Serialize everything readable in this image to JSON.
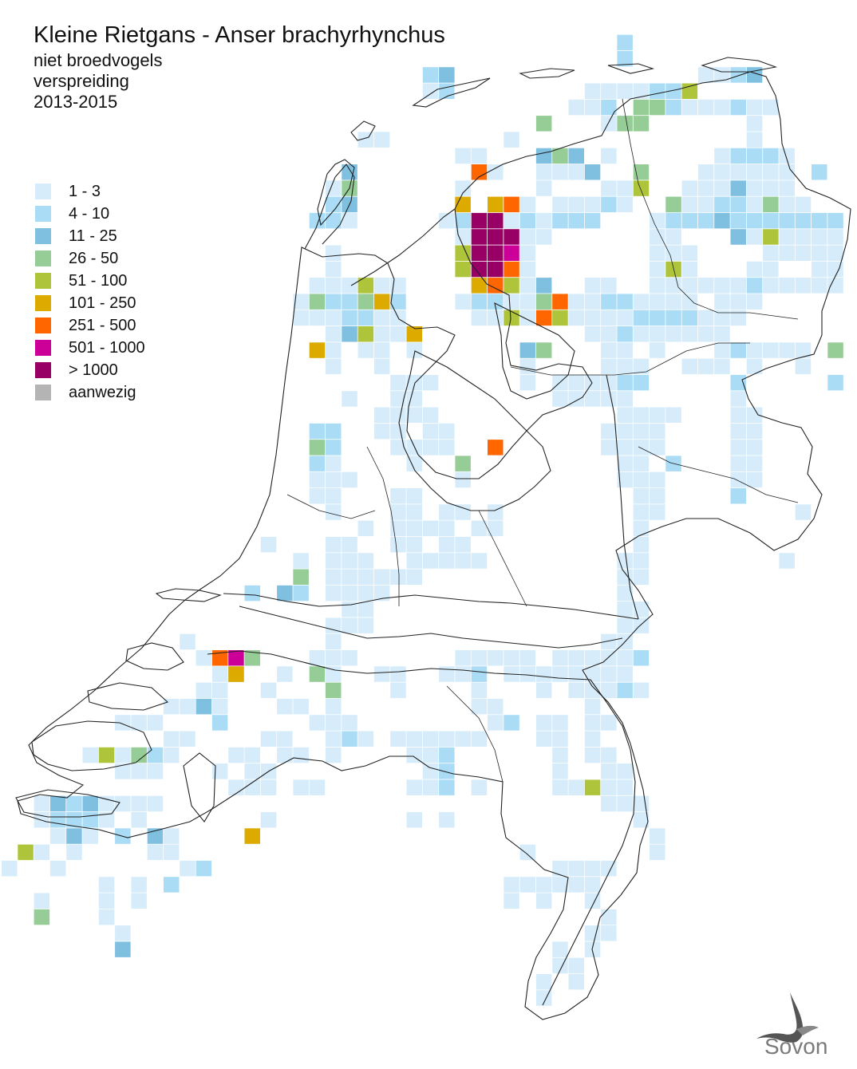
{
  "title": "Kleine Rietgans - Anser brachyrhynchus",
  "subtitle_lines": [
    "niet broedvogels",
    "verspreiding",
    "2013-2015"
  ],
  "legend": [
    {
      "label": "1 - 3",
      "color": "#d6ecfa"
    },
    {
      "label": "4 - 10",
      "color": "#aadcf5"
    },
    {
      "label": "11 - 25",
      "color": "#7fbfe0"
    },
    {
      "label": "26 - 50",
      "color": "#96cc96"
    },
    {
      "label": "51 - 100",
      "color": "#aec43a"
    },
    {
      "label": "101 - 250",
      "color": "#ddaa00"
    },
    {
      "label": "251 - 500",
      "color": "#ff6600"
    },
    {
      "label": "501 - 1000",
      "color": "#cc0099"
    },
    {
      "label": "> 1000",
      "color": "#990066"
    },
    {
      "label": "aanwezig",
      "color": "#b4b4b4"
    }
  ],
  "logo": {
    "text": "Sovon",
    "icon": "swallow-icon"
  }
}
